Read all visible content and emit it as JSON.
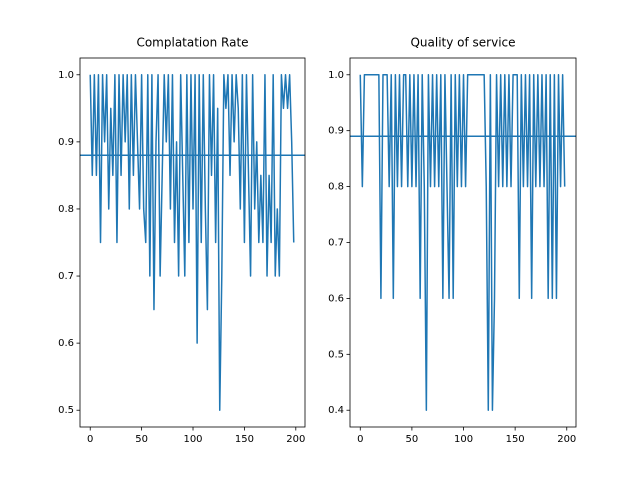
{
  "chart_data": [
    {
      "type": "line",
      "title": "Complatation Rate",
      "x": [
        0,
        2,
        4,
        6,
        8,
        10,
        12,
        14,
        16,
        18,
        20,
        22,
        24,
        26,
        28,
        30,
        32,
        34,
        36,
        38,
        40,
        42,
        44,
        46,
        48,
        50,
        52,
        54,
        56,
        58,
        60,
        62,
        64,
        66,
        68,
        70,
        72,
        74,
        76,
        78,
        80,
        82,
        84,
        86,
        88,
        90,
        92,
        94,
        96,
        98,
        100,
        102,
        104,
        106,
        108,
        110,
        112,
        114,
        116,
        118,
        120,
        122,
        124,
        126,
        128,
        130,
        132,
        134,
        136,
        138,
        140,
        142,
        144,
        146,
        148,
        150,
        152,
        154,
        156,
        158,
        160,
        162,
        164,
        166,
        168,
        170,
        172,
        174,
        176,
        178,
        180,
        182,
        184,
        186,
        188,
        190,
        192,
        194,
        196,
        198
      ],
      "values": [
        1.0,
        0.85,
        1.0,
        0.85,
        1.0,
        0.75,
        1.0,
        0.9,
        1.0,
        0.8,
        0.95,
        0.85,
        1.0,
        0.75,
        1.0,
        0.85,
        1.0,
        0.9,
        1.0,
        0.8,
        1.0,
        0.85,
        1.0,
        0.9,
        0.8,
        1.0,
        0.8,
        0.75,
        1.0,
        0.7,
        1.0,
        0.65,
        0.9,
        1.0,
        0.7,
        0.85,
        1.0,
        0.9,
        1.0,
        0.8,
        1.0,
        0.75,
        0.9,
        0.7,
        1.0,
        0.85,
        0.7,
        1.0,
        0.75,
        1.0,
        0.8,
        1.0,
        0.6,
        1.0,
        0.75,
        1.0,
        0.8,
        0.65,
        1.0,
        0.85,
        1.0,
        0.75,
        0.95,
        0.5,
        0.7,
        1.0,
        0.95,
        1.0,
        0.85,
        1.0,
        0.9,
        1.0,
        0.95,
        0.8,
        1.0,
        0.75,
        1.0,
        0.85,
        0.7,
        1.0,
        0.8,
        0.9,
        0.75,
        0.85,
        0.75,
        1.0,
        0.7,
        0.85,
        0.75,
        1.0,
        0.7,
        0.8,
        0.7,
        1.0,
        0.95,
        1.0,
        0.95,
        1.0,
        0.9,
        0.75
      ],
      "color": "#1f77b4",
      "hline": 0.88,
      "xlim": [
        -9.95,
        208.95
      ],
      "xticks": [
        0,
        50,
        100,
        150,
        200
      ],
      "ylim": [
        0.475,
        1.025
      ],
      "yticks": [
        0.5,
        0.6,
        0.7,
        0.8,
        0.9,
        {
          "value": 1,
          "label": "1.0"
        }
      ]
    },
    {
      "type": "line",
      "title": "Quality of service",
      "x": [
        0,
        2,
        4,
        6,
        8,
        10,
        12,
        14,
        16,
        18,
        20,
        22,
        24,
        26,
        28,
        30,
        32,
        34,
        36,
        38,
        40,
        42,
        44,
        46,
        48,
        50,
        52,
        54,
        56,
        58,
        60,
        62,
        64,
        66,
        68,
        70,
        72,
        74,
        76,
        78,
        80,
        82,
        84,
        86,
        88,
        90,
        92,
        94,
        96,
        98,
        100,
        102,
        104,
        106,
        108,
        110,
        112,
        114,
        116,
        118,
        120,
        122,
        124,
        126,
        128,
        130,
        132,
        134,
        136,
        138,
        140,
        142,
        144,
        146,
        148,
        150,
        152,
        154,
        156,
        158,
        160,
        162,
        164,
        166,
        168,
        170,
        172,
        174,
        176,
        178,
        180,
        182,
        184,
        186,
        188,
        190,
        192,
        194,
        196,
        198
      ],
      "values": [
        1.0,
        0.8,
        1.0,
        1.0,
        1.0,
        1.0,
        1.0,
        1.0,
        1.0,
        1.0,
        0.6,
        1.0,
        1.0,
        1.0,
        0.8,
        1.0,
        0.6,
        1.0,
        0.8,
        1.0,
        0.8,
        1.0,
        1.0,
        0.8,
        1.0,
        0.8,
        1.0,
        0.8,
        1.0,
        0.6,
        1.0,
        0.8,
        0.4,
        1.0,
        0.8,
        1.0,
        0.8,
        1.0,
        0.8,
        1.0,
        0.6,
        1.0,
        0.8,
        0.6,
        1.0,
        0.6,
        1.0,
        0.8,
        1.0,
        0.8,
        1.0,
        0.8,
        1.0,
        1.0,
        1.0,
        1.0,
        1.0,
        1.0,
        1.0,
        1.0,
        1.0,
        0.8,
        0.4,
        1.0,
        0.4,
        0.6,
        1.0,
        0.8,
        1.0,
        0.8,
        1.0,
        0.8,
        1.0,
        0.8,
        1.0,
        1.0,
        1.0,
        0.6,
        1.0,
        0.8,
        1.0,
        0.8,
        1.0,
        0.6,
        1.0,
        0.8,
        1.0,
        0.8,
        1.0,
        0.8,
        1.0,
        0.6,
        1.0,
        0.6,
        1.0,
        0.6,
        1.0,
        0.8,
        1.0,
        0.8
      ],
      "color": "#1f77b4",
      "hline": 0.89,
      "xlim": [
        -9.95,
        208.95
      ],
      "xticks": [
        0,
        50,
        100,
        150,
        200
      ],
      "ylim": [
        0.37,
        1.03
      ],
      "yticks": [
        0.4,
        0.5,
        0.6,
        0.7,
        0.8,
        0.9,
        {
          "value": 1,
          "label": "1.0"
        }
      ]
    }
  ]
}
